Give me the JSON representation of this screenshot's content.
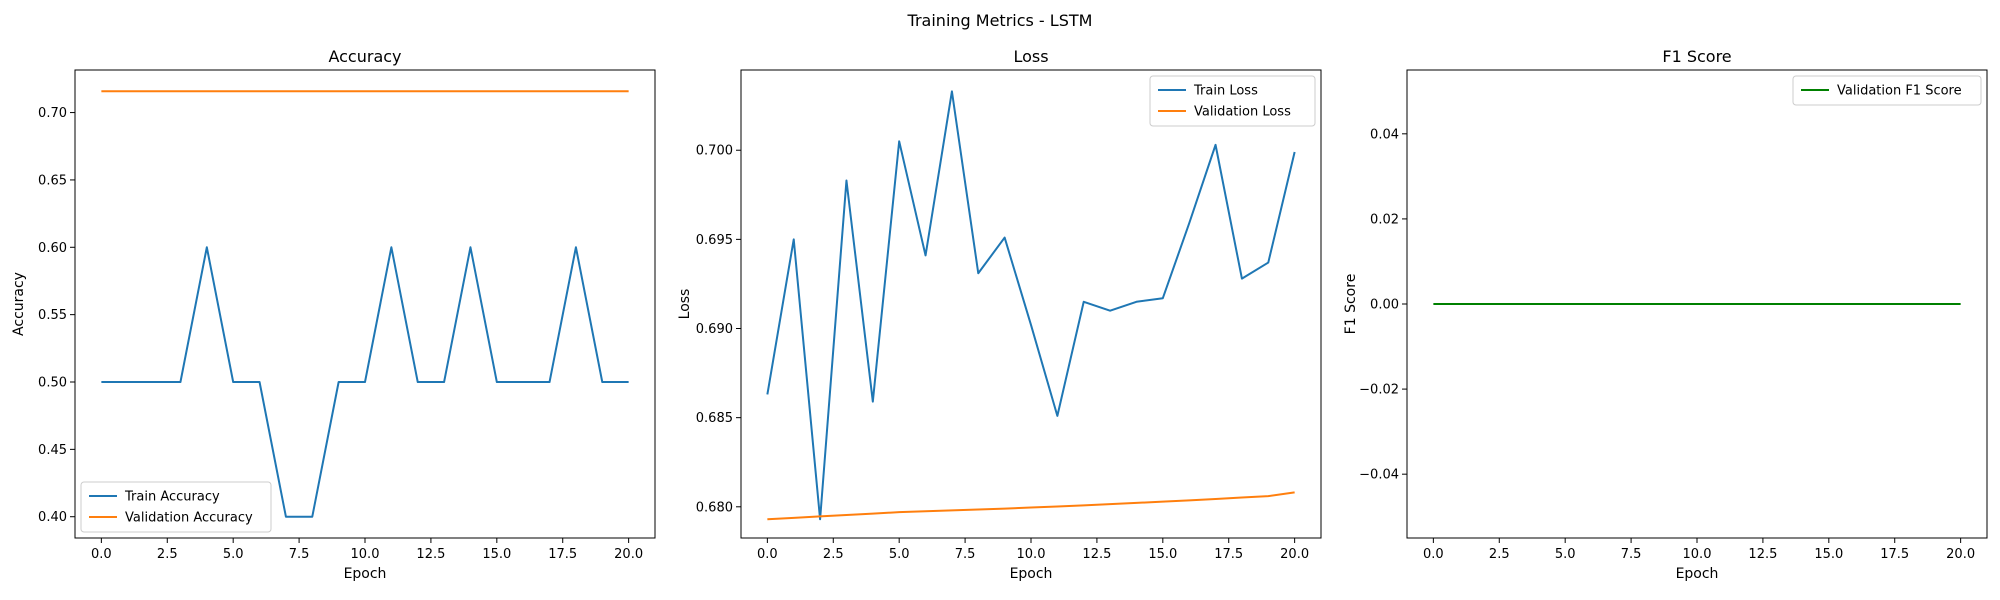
{
  "figure_title": "Training Metrics - LSTM",
  "chart_data": [
    {
      "type": "line",
      "title": "Accuracy",
      "xlabel": "Epoch",
      "ylabel": "Accuracy",
      "xlim": [
        -1.0,
        21.0
      ],
      "ylim": [
        0.3842,
        0.7316
      ],
      "xticks": [
        0.0,
        2.5,
        5.0,
        7.5,
        10.0,
        12.5,
        15.0,
        17.5,
        20.0
      ],
      "xtick_labels": [
        "0.0",
        "2.5",
        "5.0",
        "7.5",
        "10.0",
        "12.5",
        "15.0",
        "17.5",
        "20.0"
      ],
      "yticks": [
        0.4,
        0.45,
        0.5,
        0.55,
        0.6,
        0.65,
        0.7
      ],
      "ytick_labels": [
        "0.40",
        "0.45",
        "0.50",
        "0.55",
        "0.60",
        "0.65",
        "0.70"
      ],
      "legend_position": "lower-left",
      "x": [
        0,
        1,
        2,
        3,
        4,
        5,
        6,
        7,
        8,
        9,
        10,
        11,
        12,
        13,
        14,
        15,
        16,
        17,
        18,
        19,
        20
      ],
      "series": [
        {
          "name": "Train Accuracy",
          "color": "#1f77b4",
          "values": [
            0.5,
            0.5,
            0.5,
            0.5,
            0.6,
            0.5,
            0.5,
            0.4,
            0.4,
            0.5,
            0.5,
            0.6,
            0.5,
            0.5,
            0.6,
            0.5,
            0.5,
            0.5,
            0.6,
            0.5,
            0.5
          ]
        },
        {
          "name": "Validation Accuracy",
          "color": "#ff7f0e",
          "values": [
            0.7158,
            0.7158,
            0.7158,
            0.7158,
            0.7158,
            0.7158,
            0.7158,
            0.7158,
            0.7158,
            0.7158,
            0.7158,
            0.7158,
            0.7158,
            0.7158,
            0.7158,
            0.7158,
            0.7158,
            0.7158,
            0.7158,
            0.7158,
            0.7158
          ]
        }
      ]
    },
    {
      "type": "line",
      "title": "Loss",
      "xlabel": "Epoch",
      "ylabel": "Loss",
      "xlim": [
        -1.0,
        21.0
      ],
      "ylim": [
        0.67825,
        0.7045
      ],
      "xticks": [
        0.0,
        2.5,
        5.0,
        7.5,
        10.0,
        12.5,
        15.0,
        17.5,
        20.0
      ],
      "xtick_labels": [
        "0.0",
        "2.5",
        "5.0",
        "7.5",
        "10.0",
        "12.5",
        "15.0",
        "17.5",
        "20.0"
      ],
      "yticks": [
        0.68,
        0.685,
        0.69,
        0.695,
        0.7
      ],
      "ytick_labels": [
        "0.680",
        "0.685",
        "0.690",
        "0.695",
        "0.700"
      ],
      "legend_position": "top-right",
      "x": [
        0,
        1,
        2,
        3,
        4,
        5,
        6,
        7,
        8,
        9,
        10,
        11,
        12,
        13,
        14,
        15,
        16,
        17,
        18,
        19,
        20
      ],
      "series": [
        {
          "name": "Train Loss",
          "color": "#1f77b4",
          "values": [
            0.6863,
            0.695,
            0.6793,
            0.6983,
            0.6859,
            0.7005,
            0.6941,
            0.7033,
            0.6931,
            0.6951,
            0.6902,
            0.6851,
            0.6915,
            0.691,
            0.6915,
            0.6917,
            0.6959,
            0.7003,
            0.6928,
            0.6937,
            0.6999
          ]
        },
        {
          "name": "Validation Loss",
          "color": "#ff7f0e",
          "values": [
            0.6793,
            0.67938,
            0.67946,
            0.67954,
            0.67962,
            0.6797,
            0.67975,
            0.6798,
            0.67985,
            0.6799,
            0.67996,
            0.68002,
            0.68008,
            0.68015,
            0.68022,
            0.68029,
            0.68036,
            0.68044,
            0.68052,
            0.6806,
            0.68081
          ]
        }
      ]
    },
    {
      "type": "line",
      "title": "F1 Score",
      "xlabel": "Epoch",
      "ylabel": "F1 Score",
      "xlim": [
        -1.0,
        21.0
      ],
      "ylim": [
        -0.055,
        0.055
      ],
      "xticks": [
        0.0,
        2.5,
        5.0,
        7.5,
        10.0,
        12.5,
        15.0,
        17.5,
        20.0
      ],
      "xtick_labels": [
        "0.0",
        "2.5",
        "5.0",
        "7.5",
        "10.0",
        "12.5",
        "15.0",
        "17.5",
        "20.0"
      ],
      "yticks": [
        -0.04,
        -0.02,
        0.0,
        0.02,
        0.04
      ],
      "ytick_labels": [
        "−0.04",
        "−0.02",
        "0.00",
        "0.02",
        "0.04"
      ],
      "legend_position": "top-right",
      "x": [
        0,
        1,
        2,
        3,
        4,
        5,
        6,
        7,
        8,
        9,
        10,
        11,
        12,
        13,
        14,
        15,
        16,
        17,
        18,
        19,
        20
      ],
      "series": [
        {
          "name": "Validation F1 Score",
          "color": "#008000",
          "values": [
            0,
            0,
            0,
            0,
            0,
            0,
            0,
            0,
            0,
            0,
            0,
            0,
            0,
            0,
            0,
            0,
            0,
            0,
            0,
            0,
            0
          ]
        }
      ]
    }
  ]
}
